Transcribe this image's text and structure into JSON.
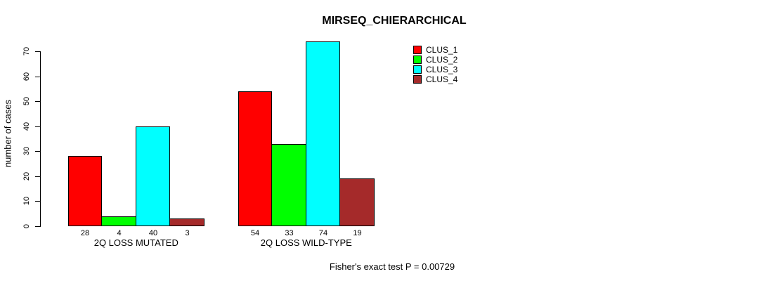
{
  "chart_data": {
    "type": "bar",
    "title": "MIRSEQ_CHIERARCHICAL",
    "xlabel": "",
    "ylabel": "number of cases",
    "categories": [
      "2Q LOSS MUTATED",
      "2Q LOSS WILD-TYPE"
    ],
    "series": [
      {
        "name": "CLUS_1",
        "color": "#FF0000",
        "values": [
          28,
          54
        ]
      },
      {
        "name": "CLUS_2",
        "color": "#00FF00",
        "values": [
          4,
          33
        ]
      },
      {
        "name": "CLUS_3",
        "color": "#00FFFF",
        "values": [
          40,
          74
        ]
      },
      {
        "name": "CLUS_4",
        "color": "#A52A2A",
        "values": [
          3,
          19
        ]
      }
    ],
    "bar_value_labels": [
      [
        28,
        4,
        40,
        3
      ],
      [
        54,
        33,
        74,
        19
      ]
    ],
    "yticks": [
      0,
      10,
      20,
      30,
      40,
      50,
      60,
      70
    ],
    "ylim": [
      0,
      74
    ],
    "grid": false,
    "legend_position": "top-right",
    "annotation": "Fisher's exact test P = 0.00729",
    "axis_color": "#000000",
    "background_color": "#ffffff"
  }
}
